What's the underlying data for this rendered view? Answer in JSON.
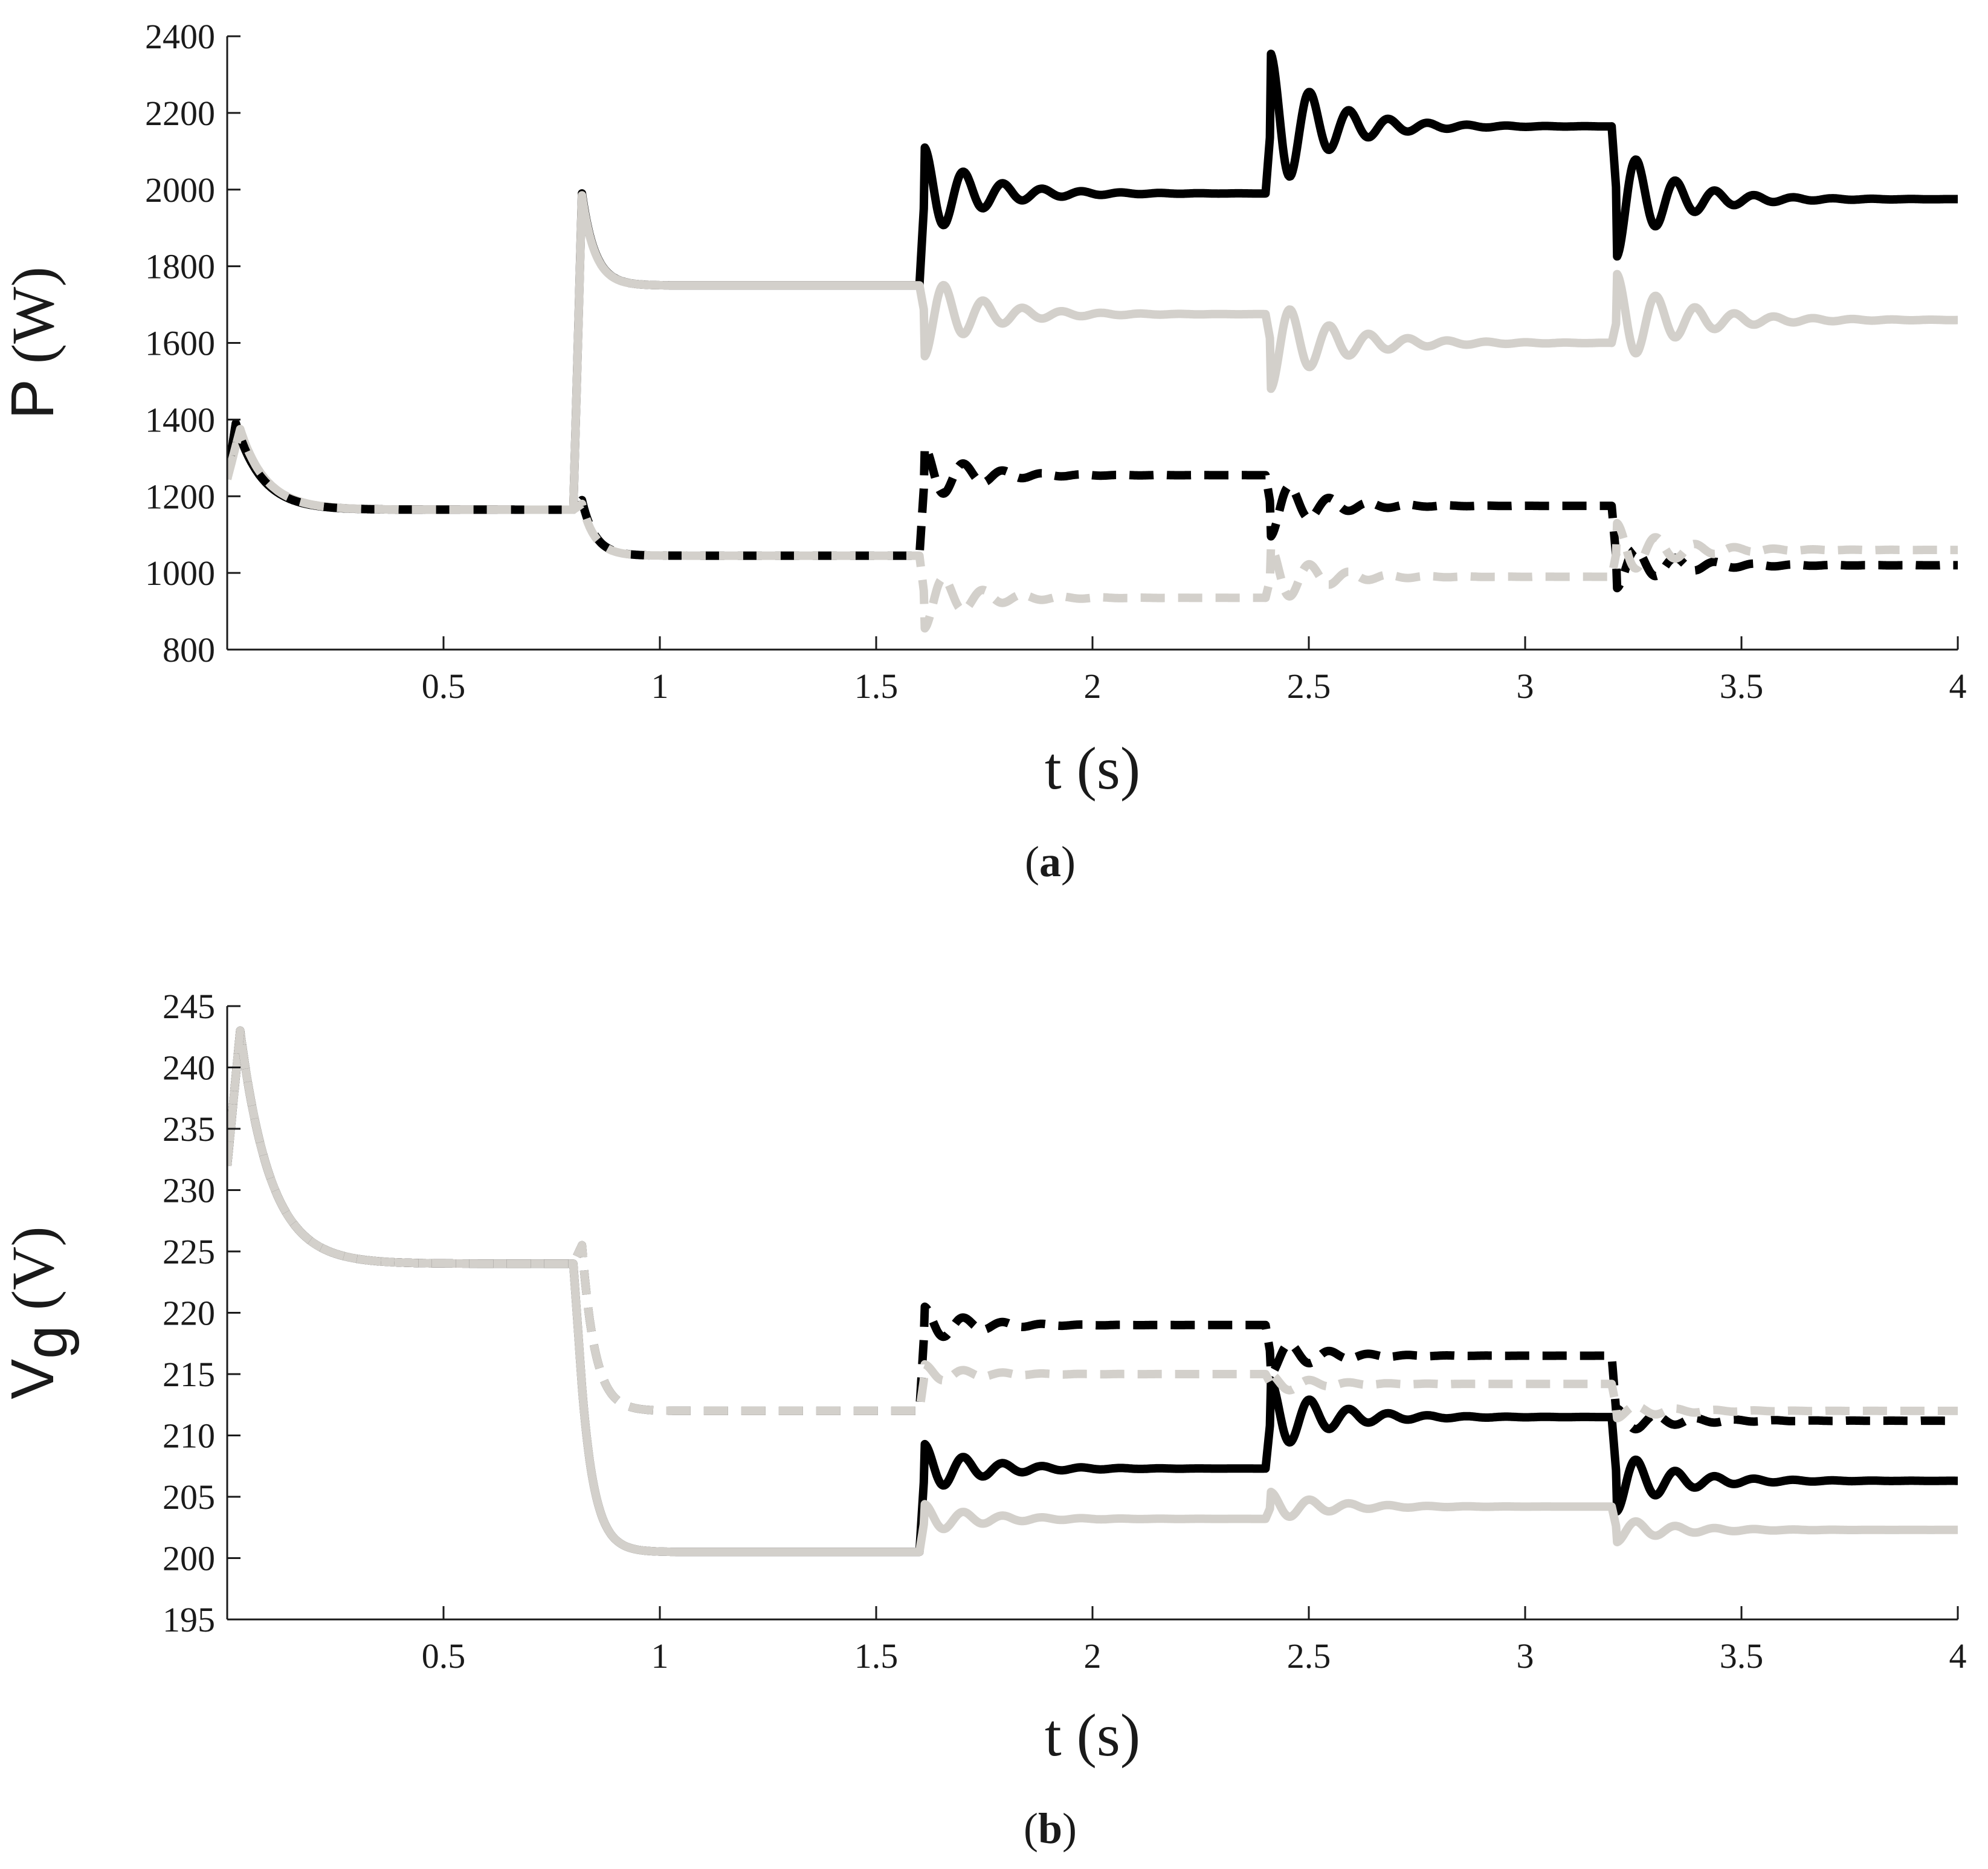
{
  "chart_data": [
    {
      "type": "line",
      "caption": "(a)",
      "caption_parts": {
        "open": "(",
        "letter": "a",
        "close": ")"
      },
      "xlabel": "t (s)",
      "ylabel": "P (W)",
      "ylabel_parts": {
        "main": "P",
        "rest": " (W)",
        "sub": ""
      },
      "xlim": [
        0,
        4
      ],
      "ylim": [
        800,
        2400
      ],
      "xticks": [
        0.5,
        1,
        1.5,
        2,
        2.5,
        3,
        3.5,
        4
      ],
      "xtick_labels": [
        "0.5",
        "1",
        "1.5",
        "2",
        "2.5",
        "3",
        "3.5",
        "4"
      ],
      "yticks": [
        800,
        1000,
        1200,
        1400,
        1600,
        1800,
        2000,
        2200,
        2400
      ],
      "ytick_labels": [
        "800",
        "1000",
        "1200",
        "1400",
        "1600",
        "1800",
        "2000",
        "2200",
        "2400"
      ],
      "grid": false,
      "series": [
        {
          "color": "#000000",
          "style": "solid",
          "initial": 1245,
          "segments": [
            {
              "t0": 0.0,
              "t1": 0.8,
              "target": 1165,
              "osc_amp": 0,
              "peak": 1390,
              "peak_t": 0.02,
              "tau": 0.06
            },
            {
              "t0": 0.8,
              "t1": 1.6,
              "target": 1750,
              "osc_amp": 0,
              "peak": 1990,
              "peak_t": 0.02,
              "tau": 0.03
            },
            {
              "t0": 1.6,
              "t1": 2.4,
              "target": 1990,
              "osc_amp": 120,
              "freq": 11,
              "tau": 0.12
            },
            {
              "t0": 2.4,
              "t1": 3.2,
              "target": 2165,
              "osc_amp": 190,
              "freq": 11,
              "tau": 0.12
            },
            {
              "t0": 3.2,
              "t1": 4.0,
              "target": 1975,
              "osc_amp": -150,
              "freq": 11,
              "tau": 0.12
            }
          ]
        },
        {
          "color": "#d3d0cb",
          "style": "solid",
          "initial": 1245,
          "segments": [
            {
              "t0": 0.0,
              "t1": 0.8,
              "target": 1165,
              "osc_amp": 0,
              "peak": 1375,
              "peak_t": 0.03,
              "tau": 0.06
            },
            {
              "t0": 0.8,
              "t1": 1.6,
              "target": 1750,
              "osc_amp": 0,
              "peak": 1985,
              "peak_t": 0.02,
              "tau": 0.03
            },
            {
              "t0": 1.6,
              "t1": 2.4,
              "target": 1675,
              "osc_amp": -110,
              "freq": 11,
              "tau": 0.12
            },
            {
              "t0": 2.4,
              "t1": 3.2,
              "target": 1600,
              "osc_amp": -120,
              "freq": 11,
              "tau": 0.14
            },
            {
              "t0": 3.2,
              "t1": 4.0,
              "target": 1660,
              "osc_amp": 120,
              "freq": 11,
              "tau": 0.14
            }
          ]
        },
        {
          "color": "#000000",
          "style": "dashed",
          "initial": 1245,
          "segments": [
            {
              "t0": 0.0,
              "t1": 0.8,
              "target": 1165,
              "osc_amp": 0,
              "peak": 1390,
              "peak_t": 0.02,
              "tau": 0.06
            },
            {
              "t0": 0.8,
              "t1": 1.6,
              "target": 1045,
              "osc_amp": 0,
              "peak": 1190,
              "peak_t": 0.02,
              "tau": 0.03
            },
            {
              "t0": 1.6,
              "t1": 2.4,
              "target": 1255,
              "osc_amp": 75,
              "freq": 11,
              "tau": 0.1
            },
            {
              "t0": 2.4,
              "t1": 3.2,
              "target": 1175,
              "osc_amp": -80,
              "freq": 11,
              "tau": 0.1
            },
            {
              "t0": 3.2,
              "t1": 4.0,
              "target": 1020,
              "osc_amp": -60,
              "freq": 11,
              "tau": 0.12
            }
          ]
        },
        {
          "color": "#d3d0cb",
          "style": "dashed",
          "initial": 1245,
          "segments": [
            {
              "t0": 0.0,
              "t1": 0.8,
              "target": 1165,
              "osc_amp": 0,
              "peak": 1375,
              "peak_t": 0.03,
              "tau": 0.06
            },
            {
              "t0": 0.8,
              "t1": 1.6,
              "target": 1045,
              "osc_amp": 0,
              "peak": 1180,
              "peak_t": 0.02,
              "tau": 0.03
            },
            {
              "t0": 1.6,
              "t1": 2.4,
              "target": 935,
              "osc_amp": -80,
              "freq": 11,
              "tau": 0.1
            },
            {
              "t0": 2.4,
              "t1": 3.2,
              "target": 990,
              "osc_amp": 80,
              "freq": 11,
              "tau": 0.1
            },
            {
              "t0": 3.2,
              "t1": 4.0,
              "target": 1060,
              "osc_amp": 70,
              "freq": 11,
              "tau": 0.12
            }
          ]
        }
      ]
    },
    {
      "type": "line",
      "caption": "(b)",
      "caption_parts": {
        "open": "(",
        "letter": "b",
        "close": ")"
      },
      "xlabel": "t (s)",
      "ylabel": "Vg (V)",
      "ylabel_parts": {
        "main": "V",
        "sub": "g",
        "rest": " (V)"
      },
      "xlim": [
        0,
        4
      ],
      "ylim": [
        195,
        245
      ],
      "xticks": [
        0.5,
        1,
        1.5,
        2,
        2.5,
        3,
        3.5,
        4
      ],
      "xtick_labels": [
        "0.5",
        "1",
        "1.5",
        "2",
        "2.5",
        "3",
        "3.5",
        "4"
      ],
      "yticks": [
        195,
        200,
        205,
        210,
        215,
        220,
        225,
        230,
        235,
        240,
        245
      ],
      "ytick_labels": [
        "195",
        "200",
        "205",
        "210",
        "215",
        "220",
        "225",
        "230",
        "235",
        "240",
        "245"
      ],
      "grid": false,
      "series": [
        {
          "color": "#000000",
          "style": "solid",
          "initial": 232,
          "segments": [
            {
              "t0": 0.0,
              "t1": 0.8,
              "target": 224,
              "osc_amp": 0,
              "peak": 243,
              "peak_t": 0.03,
              "tau": 0.07
            },
            {
              "t0": 0.8,
              "t1": 1.6,
              "target": 200.5,
              "osc_amp": 0,
              "peak": 214,
              "peak_t": 0.02,
              "tau": 0.03
            },
            {
              "t0": 1.6,
              "t1": 2.4,
              "target": 207.3,
              "osc_amp": 2.0,
              "freq": 11,
              "tau": 0.12
            },
            {
              "t0": 2.4,
              "t1": 3.2,
              "target": 211.5,
              "osc_amp": 3.0,
              "freq": 11,
              "tau": 0.12
            },
            {
              "t0": 3.2,
              "t1": 4.0,
              "target": 206.3,
              "osc_amp": -2.5,
              "freq": 11,
              "tau": 0.12
            }
          ]
        },
        {
          "color": "#d3d0cb",
          "style": "solid",
          "initial": 232,
          "segments": [
            {
              "t0": 0.0,
              "t1": 0.8,
              "target": 224,
              "osc_amp": 0,
              "peak": 243,
              "peak_t": 0.03,
              "tau": 0.07
            },
            {
              "t0": 0.8,
              "t1": 1.6,
              "target": 200.5,
              "osc_amp": 0,
              "peak": 214,
              "peak_t": 0.02,
              "tau": 0.03
            },
            {
              "t0": 1.6,
              "t1": 2.4,
              "target": 203.2,
              "osc_amp": 1.2,
              "freq": 11,
              "tau": 0.12
            },
            {
              "t0": 2.4,
              "t1": 3.2,
              "target": 204.2,
              "osc_amp": 1.2,
              "freq": 11,
              "tau": 0.12
            },
            {
              "t0": 3.2,
              "t1": 4.0,
              "target": 202.3,
              "osc_amp": -1.0,
              "freq": 11,
              "tau": 0.12
            }
          ]
        },
        {
          "color": "#000000",
          "style": "dashed",
          "initial": 232,
          "segments": [
            {
              "t0": 0.0,
              "t1": 0.8,
              "target": 224,
              "osc_amp": 0,
              "peak": 243,
              "peak_t": 0.03,
              "tau": 0.07
            },
            {
              "t0": 0.8,
              "t1": 1.6,
              "target": 212,
              "osc_amp": 0,
              "peak": 225.5,
              "peak_t": 0.02,
              "tau": 0.03
            },
            {
              "t0": 1.6,
              "t1": 2.4,
              "target": 219,
              "osc_amp": 1.5,
              "freq": 11,
              "tau": 0.1
            },
            {
              "t0": 2.4,
              "t1": 3.2,
              "target": 216.5,
              "osc_amp": -1.5,
              "freq": 11,
              "tau": 0.1
            },
            {
              "t0": 3.2,
              "t1": 4.0,
              "target": 211.2,
              "osc_amp": 1.0,
              "freq": 11,
              "tau": 0.12
            }
          ]
        },
        {
          "color": "#d3d0cb",
          "style": "dashed",
          "initial": 232,
          "segments": [
            {
              "t0": 0.0,
              "t1": 0.8,
              "target": 224,
              "osc_amp": 0,
              "peak": 243,
              "peak_t": 0.03,
              "tau": 0.07
            },
            {
              "t0": 0.8,
              "t1": 1.6,
              "target": 212,
              "osc_amp": 0,
              "peak": 225.5,
              "peak_t": 0.02,
              "tau": 0.03
            },
            {
              "t0": 1.6,
              "t1": 2.4,
              "target": 215,
              "osc_amp": 0.8,
              "freq": 11,
              "tau": 0.1
            },
            {
              "t0": 2.4,
              "t1": 3.2,
              "target": 214.2,
              "osc_amp": 0.8,
              "freq": 11,
              "tau": 0.1
            },
            {
              "t0": 3.2,
              "t1": 4.0,
              "target": 212,
              "osc_amp": -0.6,
              "freq": 11,
              "tau": 0.12
            }
          ]
        }
      ]
    }
  ]
}
